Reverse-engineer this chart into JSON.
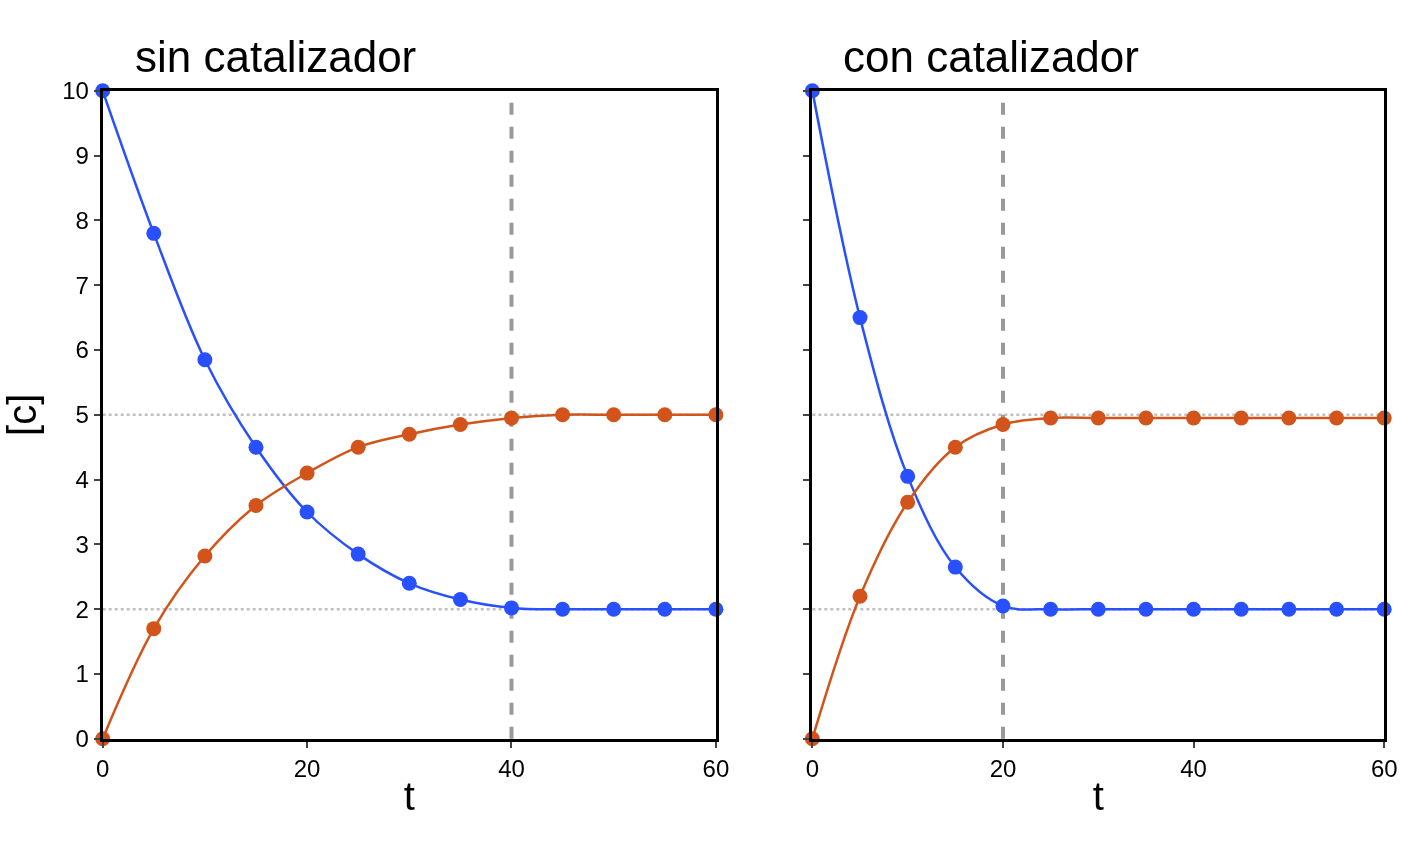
{
  "chart_data": [
    {
      "type": "line",
      "title": "sin catalizador",
      "xlabel": "t",
      "ylabel": "[c]",
      "xlim": [
        0,
        60
      ],
      "ylim": [
        0,
        10
      ],
      "xticks": [
        0,
        20,
        40,
        60
      ],
      "yticks": [
        0,
        1,
        2,
        3,
        4,
        5,
        6,
        7,
        8,
        9,
        10
      ],
      "grid": false,
      "marker": "circle",
      "line_style": "solid",
      "x": [
        0,
        5,
        10,
        15,
        20,
        25,
        30,
        35,
        40,
        45,
        50,
        55,
        60
      ],
      "series": [
        {
          "color": "#2850ff",
          "values": [
            10,
            7.8,
            5.85,
            4.5,
            3.5,
            2.85,
            2.4,
            2.15,
            2.02,
            2.0,
            2.0,
            2.0,
            2.0
          ]
        },
        {
          "color": "#d2541a",
          "values": [
            0,
            1.7,
            2.82,
            3.6,
            4.1,
            4.5,
            4.7,
            4.85,
            4.95,
            5.0,
            5.0,
            5.0,
            5.0
          ]
        }
      ],
      "ref_lines": [
        {
          "axis": "y",
          "value": 5,
          "color": "#c0c0c0",
          "line_style": "dotted"
        },
        {
          "axis": "y",
          "value": 2,
          "color": "#c0c0c0",
          "line_style": "dotted"
        },
        {
          "axis": "x",
          "value": 40,
          "color": "#999999",
          "line_style": "dashed"
        }
      ]
    },
    {
      "type": "line",
      "title": "con catalizador",
      "xlabel": "t",
      "xlim": [
        0,
        60
      ],
      "ylim": [
        0,
        10
      ],
      "xticks": [
        0,
        20,
        40,
        60
      ],
      "yticks": [
        0,
        1,
        2,
        3,
        4,
        5,
        6,
        7,
        8,
        9,
        10
      ],
      "tick_labels": "x",
      "grid": false,
      "marker": "circle",
      "line_style": "solid",
      "x": [
        0,
        5,
        10,
        15,
        20,
        25,
        30,
        35,
        40,
        45,
        50,
        55,
        60
      ],
      "series": [
        {
          "color": "#2850ff",
          "values": [
            10,
            6.5,
            4.05,
            2.65,
            2.05,
            2.0,
            2.0,
            2.0,
            2.0,
            2.0,
            2.0,
            2.0,
            2.0
          ]
        },
        {
          "color": "#d2541a",
          "values": [
            0,
            2.2,
            3.65,
            4.5,
            4.85,
            4.95,
            4.95,
            4.95,
            4.95,
            4.95,
            4.95,
            4.95,
            4.95
          ]
        }
      ],
      "ref_lines": [
        {
          "axis": "y",
          "value": 5,
          "color": "#c0c0c0",
          "line_style": "dotted"
        },
        {
          "axis": "y",
          "value": 2,
          "color": "#c0c0c0",
          "line_style": "dotted"
        },
        {
          "axis": "x",
          "value": 20,
          "color": "#999999",
          "line_style": "dashed"
        }
      ]
    }
  ]
}
